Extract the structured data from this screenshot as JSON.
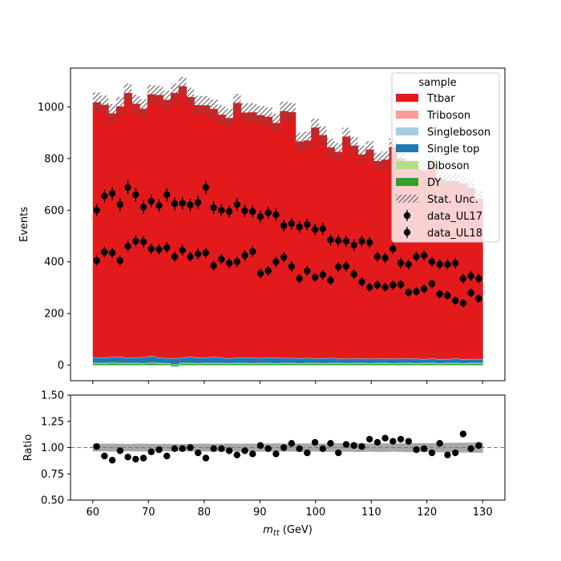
{
  "chart_data": [
    {
      "type": "bar",
      "stacked": true,
      "panel": "main",
      "ylabel": "Events",
      "xlim": [
        56,
        134
      ],
      "ylim": [
        -60,
        1150
      ],
      "yticks": [
        0,
        200,
        400,
        600,
        800,
        1000
      ],
      "legend": {
        "title": "sample",
        "placement": "top-right",
        "entries": [
          "Ttbar",
          "Triboson",
          "Singleboson",
          "Single top",
          "Diboson",
          "DY",
          "Stat. Unc.",
          "data_UL17",
          "data_UL18"
        ]
      },
      "bin_edges": [
        60.0,
        61.4,
        62.8,
        64.2,
        65.6,
        67.0,
        68.4,
        69.8,
        71.2,
        72.6,
        74.0,
        75.4,
        76.8,
        78.2,
        79.6,
        81.0,
        82.4,
        83.8,
        85.2,
        86.6,
        88.0,
        89.4,
        90.8,
        92.2,
        93.6,
        95.0,
        96.4,
        97.8,
        99.2,
        100.6,
        102.0,
        103.4,
        104.8,
        106.2,
        107.6,
        109.0,
        110.4,
        111.8,
        113.2,
        114.6,
        116.0,
        117.4,
        118.8,
        120.2,
        121.6,
        123.0,
        124.4,
        125.8,
        127.2,
        128.6,
        130.0
      ],
      "series": [
        {
          "name": "DY",
          "color": "#33a02c",
          "values": [
            6,
            6,
            7,
            6,
            6,
            6,
            5,
            7,
            6,
            5,
            -5,
            6,
            6,
            5,
            6,
            6,
            6,
            5,
            6,
            6,
            5,
            6,
            6,
            5,
            6,
            6,
            5,
            6,
            6,
            5,
            6,
            6,
            5,
            6,
            6,
            5,
            6,
            6,
            5,
            6,
            6,
            5,
            6,
            6,
            5,
            6,
            6,
            5,
            6,
            6
          ]
        },
        {
          "name": "Diboson",
          "color": "#b2df8a",
          "values": [
            3,
            3,
            3,
            3,
            3,
            3,
            3,
            3,
            3,
            3,
            3,
            3,
            3,
            3,
            3,
            3,
            3,
            3,
            3,
            3,
            3,
            3,
            3,
            3,
            3,
            3,
            3,
            3,
            3,
            3,
            3,
            3,
            3,
            3,
            3,
            3,
            3,
            3,
            3,
            3,
            3,
            3,
            3,
            3,
            3,
            3,
            3,
            3,
            3,
            3
          ]
        },
        {
          "name": "Single top",
          "color": "#1f78b4",
          "values": [
            20,
            20,
            22,
            22,
            20,
            20,
            22,
            24,
            20,
            18,
            22,
            20,
            22,
            20,
            20,
            22,
            20,
            18,
            20,
            20,
            20,
            18,
            20,
            20,
            18,
            18,
            18,
            18,
            16,
            18,
            18,
            16,
            16,
            16,
            16,
            16,
            16,
            16,
            16,
            16,
            16,
            16,
            14,
            16,
            14,
            14,
            16,
            14,
            14,
            14
          ]
        },
        {
          "name": "Singleboson",
          "color": "#a6cee3",
          "values": [
            1,
            1,
            1,
            1,
            1,
            1,
            1,
            1,
            1,
            1,
            1,
            1,
            1,
            1,
            1,
            1,
            1,
            1,
            1,
            1,
            1,
            1,
            1,
            1,
            1,
            1,
            1,
            1,
            1,
            1,
            1,
            1,
            1,
            1,
            1,
            1,
            1,
            1,
            1,
            1,
            1,
            1,
            1,
            1,
            1,
            1,
            1,
            1,
            1,
            1
          ]
        },
        {
          "name": "Triboson",
          "color": "#fb9a99",
          "values": [
            0,
            0,
            0,
            0,
            0,
            0,
            0,
            0,
            0,
            0,
            0,
            0,
            0,
            0,
            0,
            0,
            0,
            0,
            0,
            0,
            0,
            0,
            0,
            0,
            0,
            0,
            0,
            0,
            0,
            0,
            0,
            0,
            0,
            0,
            0,
            0,
            0,
            0,
            0,
            0,
            0,
            0,
            0,
            0,
            0,
            0,
            0,
            0,
            0,
            0
          ]
        },
        {
          "name": "Ttbar",
          "color": "#e31a1c",
          "values": [
            988,
            978,
            942,
            970,
            1024,
            982,
            962,
            1014,
            1016,
            1000,
            1028,
            1050,
            1006,
            978,
            976,
            960,
            940,
            930,
            985,
            948,
            950,
            940,
            932,
            909,
            956,
            952,
            839,
            842,
            894,
            864,
            815,
            800,
            860,
            824,
            790,
            810,
            764,
            770,
            820,
            774,
            738,
            734,
            730,
            754,
            700,
            690,
            686,
            680,
            662,
            620
          ]
        }
      ],
      "stat_unc": [
        38,
        36,
        36,
        36,
        36,
        36,
        36,
        36,
        36,
        36,
        36,
        36,
        36,
        36,
        36,
        36,
        36,
        36,
        36,
        36,
        36,
        36,
        36,
        36,
        36,
        36,
        34,
        34,
        34,
        34,
        34,
        34,
        34,
        34,
        34,
        32,
        32,
        32,
        32,
        32,
        32,
        32,
        32,
        32,
        32,
        32,
        32,
        32,
        32,
        32
      ],
      "data_series": [
        {
          "name": "data_UL17",
          "marker": "circle",
          "color": "#000000",
          "x": [
            60.7,
            62.1,
            63.5,
            64.9,
            66.3,
            67.7,
            69.1,
            70.5,
            71.9,
            73.3,
            74.7,
            76.1,
            77.5,
            78.9,
            80.3,
            81.7,
            83.1,
            84.5,
            85.9,
            87.3,
            88.7,
            90.1,
            91.5,
            92.9,
            94.3,
            95.7,
            97.1,
            98.5,
            99.9,
            101.3,
            102.7,
            104.1,
            105.5,
            106.9,
            108.3,
            109.7,
            111.1,
            112.5,
            113.9,
            115.3,
            116.7,
            118.1,
            119.5,
            120.9,
            122.3,
            123.7,
            125.1,
            126.5,
            127.9,
            129.3
          ],
          "y": [
            600,
            655,
            665,
            622,
            688,
            660,
            612,
            635,
            618,
            660,
            625,
            627,
            620,
            630,
            688,
            610,
            600,
            595,
            622,
            598,
            595,
            575,
            590,
            582,
            540,
            548,
            535,
            545,
            525,
            528,
            485,
            482,
            480,
            465,
            480,
            475,
            420,
            415,
            450,
            395,
            390,
            420,
            425,
            400,
            390,
            390,
            395,
            335,
            345,
            335
          ],
          "yerr": [
            24,
            25,
            26,
            25,
            26,
            26,
            25,
            25,
            25,
            26,
            25,
            25,
            25,
            25,
            26,
            25,
            24,
            24,
            25,
            24,
            24,
            24,
            24,
            24,
            23,
            23,
            23,
            23,
            23,
            23,
            22,
            22,
            22,
            22,
            22,
            22,
            20,
            20,
            21,
            20,
            20,
            20,
            21,
            20,
            20,
            20,
            20,
            18,
            19,
            18
          ]
        },
        {
          "name": "data_UL18",
          "marker": "circle",
          "color": "#000000",
          "x": [
            60.7,
            62.1,
            63.5,
            64.9,
            66.3,
            67.7,
            69.1,
            70.5,
            71.9,
            73.3,
            74.7,
            76.1,
            77.5,
            78.9,
            80.3,
            81.7,
            83.1,
            84.5,
            85.9,
            87.3,
            88.7,
            90.1,
            91.5,
            92.9,
            94.3,
            95.7,
            97.1,
            98.5,
            99.9,
            101.3,
            102.7,
            104.1,
            105.5,
            106.9,
            108.3,
            109.7,
            111.1,
            112.5,
            113.9,
            115.3,
            116.7,
            118.1,
            119.5,
            120.9,
            122.3,
            123.7,
            125.1,
            126.5,
            127.9,
            129.3
          ],
          "y": [
            405,
            438,
            435,
            405,
            460,
            480,
            478,
            450,
            448,
            455,
            420,
            445,
            420,
            430,
            435,
            385,
            410,
            395,
            400,
            425,
            440,
            355,
            365,
            400,
            418,
            382,
            335,
            365,
            340,
            350,
            328,
            380,
            383,
            352,
            322,
            302,
            310,
            302,
            310,
            312,
            282,
            285,
            295,
            315,
            275,
            270,
            250,
            240,
            280,
            258
          ],
          "yerr": [
            20,
            21,
            21,
            20,
            21,
            22,
            22,
            21,
            21,
            21,
            20,
            21,
            20,
            21,
            21,
            20,
            20,
            20,
            20,
            21,
            21,
            19,
            19,
            20,
            20,
            20,
            18,
            19,
            18,
            19,
            18,
            19,
            20,
            19,
            18,
            17,
            18,
            17,
            18,
            18,
            17,
            17,
            17,
            18,
            17,
            16,
            16,
            15,
            17,
            16
          ]
        }
      ]
    },
    {
      "type": "scatter",
      "panel": "ratio",
      "xlabel": "m_tt (GeV)",
      "xlabel_main": "m",
      "xlabel_sub": "tt",
      "xlabel_unit": " (GeV)",
      "ylabel": "Ratio",
      "xlim": [
        56,
        134
      ],
      "ylim": [
        0.5,
        1.5
      ],
      "yticks": [
        "0.50",
        "0.75",
        "1.00",
        "1.25",
        "1.50"
      ],
      "xticks": [
        "60",
        "70",
        "80",
        "90",
        "100",
        "110",
        "120",
        "130"
      ],
      "reference_line": 1.0,
      "band_halfwidth": [
        0.037,
        0.037,
        0.038,
        0.037,
        0.035,
        0.037,
        0.037,
        0.036,
        0.035,
        0.036,
        0.035,
        0.034,
        0.036,
        0.037,
        0.037,
        0.037,
        0.038,
        0.039,
        0.037,
        0.038,
        0.038,
        0.038,
        0.039,
        0.04,
        0.038,
        0.038,
        0.04,
        0.04,
        0.038,
        0.039,
        0.041,
        0.042,
        0.039,
        0.041,
        0.042,
        0.039,
        0.041,
        0.041,
        0.039,
        0.041,
        0.043,
        0.043,
        0.043,
        0.042,
        0.045,
        0.046,
        0.046,
        0.047,
        0.048,
        0.05
      ],
      "x": [
        60.7,
        62.1,
        63.5,
        64.9,
        66.3,
        67.7,
        69.1,
        70.5,
        71.9,
        73.3,
        74.7,
        76.1,
        77.5,
        78.9,
        80.3,
        81.7,
        83.1,
        84.5,
        85.9,
        87.3,
        88.7,
        90.1,
        91.5,
        92.9,
        94.3,
        95.7,
        97.1,
        98.5,
        99.9,
        101.3,
        102.7,
        104.1,
        105.5,
        106.9,
        108.3,
        109.7,
        111.1,
        112.5,
        113.9,
        115.3,
        116.7,
        118.1,
        119.5,
        120.9,
        122.3,
        123.7,
        125.1,
        126.5,
        127.9,
        129.3
      ],
      "y": [
        1.01,
        0.92,
        0.88,
        0.97,
        0.91,
        0.89,
        0.9,
        0.96,
        0.98,
        0.92,
        0.99,
        0.99,
        1.0,
        0.95,
        0.9,
        0.99,
        0.99,
        0.97,
        0.93,
        0.97,
        0.94,
        1.02,
        0.99,
        0.94,
        1.0,
        1.04,
        0.99,
        0.95,
        1.05,
        0.99,
        1.04,
        0.95,
        1.03,
        1.02,
        1.01,
        1.08,
        1.05,
        1.09,
        1.06,
        1.08,
        1.06,
        0.98,
        0.99,
        0.95,
        1.04,
        0.93,
        0.95,
        1.13,
        0.99,
        1.02
      ],
      "yerr": [
        0.02,
        0.02,
        0.02,
        0.02,
        0.02,
        0.02,
        0.02,
        0.02,
        0.02,
        0.02,
        0.02,
        0.02,
        0.02,
        0.02,
        0.02,
        0.02,
        0.02,
        0.02,
        0.02,
        0.02,
        0.02,
        0.02,
        0.02,
        0.02,
        0.02,
        0.02,
        0.02,
        0.02,
        0.02,
        0.02,
        0.02,
        0.02,
        0.02,
        0.02,
        0.02,
        0.02,
        0.02,
        0.02,
        0.02,
        0.02,
        0.02,
        0.02,
        0.02,
        0.02,
        0.02,
        0.02,
        0.02,
        0.03,
        0.03,
        0.03
      ]
    }
  ],
  "main_yticks": [
    "0",
    "200",
    "400",
    "600",
    "800",
    "1000"
  ]
}
